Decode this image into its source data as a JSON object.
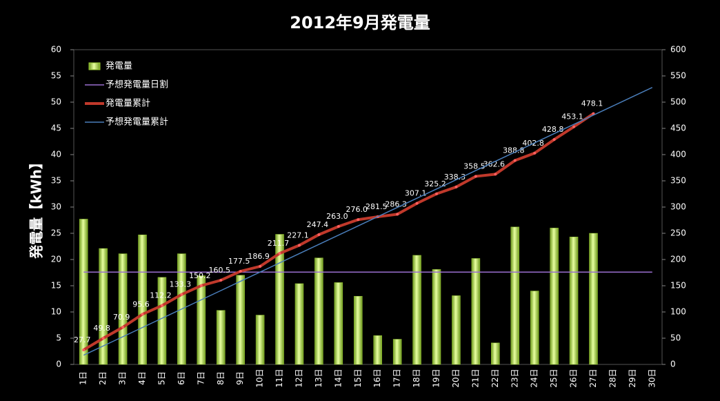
{
  "chart_data": {
    "type": "bar",
    "title": "2012年9月発電量",
    "y_label": "発電量【kWh】",
    "categories": [
      "1日",
      "2日",
      "3日",
      "4日",
      "5日",
      "6日",
      "7日",
      "8日",
      "9日",
      "10日",
      "11日",
      "12日",
      "13日",
      "14日",
      "15日",
      "16日",
      "17日",
      "18日",
      "19日",
      "20日",
      "21日",
      "22日",
      "23日",
      "24日",
      "25日",
      "26日",
      "27日",
      "28日",
      "29日",
      "30日"
    ],
    "series": [
      {
        "name": "発電量",
        "type": "bar",
        "color": "#9acd32",
        "axis": "y",
        "values": [
          27.7,
          22.1,
          21.1,
          24.7,
          16.6,
          21.1,
          16.9,
          10.3,
          17.0,
          9.4,
          24.8,
          15.4,
          20.3,
          15.6,
          13.0,
          5.5,
          4.8,
          20.8,
          18.1,
          13.1,
          20.2,
          4.1,
          26.2,
          14.0,
          26.0,
          24.3,
          25.0,
          null,
          null,
          null
        ]
      },
      {
        "name": "予想発電量日割",
        "type": "line",
        "color": "#9b6fcf",
        "axis": "y",
        "values": [
          17.6,
          17.6,
          17.6,
          17.6,
          17.6,
          17.6,
          17.6,
          17.6,
          17.6,
          17.6,
          17.6,
          17.6,
          17.6,
          17.6,
          17.6,
          17.6,
          17.6,
          17.6,
          17.6,
          17.6,
          17.6,
          17.6,
          17.6,
          17.6,
          17.6,
          17.6,
          17.6,
          17.6,
          17.6,
          17.6
        ]
      },
      {
        "name": "発電量累計",
        "type": "line",
        "color": "#c0392b",
        "axis": "y2",
        "markers": true,
        "values": [
          27.7,
          49.8,
          70.9,
          95.6,
          112.2,
          133.3,
          150.2,
          160.5,
          177.5,
          186.9,
          211.7,
          227.1,
          247.4,
          263.0,
          276.0,
          281.5,
          286.3,
          307.1,
          325.2,
          338.3,
          358.5,
          362.6,
          388.8,
          402.8,
          428.8,
          453.1,
          478.1,
          null,
          null,
          null
        ],
        "value_labels": [
          "27.7",
          "49.8",
          "70.9",
          "95.6",
          "112.2",
          "133.3",
          "150.2",
          "160.5",
          "177.5",
          "186.9",
          "211.7",
          "227.1",
          "247.4",
          "263.0",
          "276.0",
          "281.5",
          "286.3",
          "307.1",
          "325.2",
          "338.3",
          "358.5",
          "362.6",
          "388.8",
          "402.8",
          "428.8",
          "453.1",
          "478.1",
          null,
          null,
          null
        ]
      },
      {
        "name": "予想発電量累計",
        "type": "line",
        "color": "#4a7ebb",
        "axis": "y2",
        "values": [
          17.6,
          35.2,
          52.8,
          70.4,
          88,
          105.6,
          123.2,
          140.8,
          158.4,
          176,
          193.6,
          211.2,
          228.8,
          246.4,
          264,
          281.6,
          299.2,
          316.8,
          334.4,
          352,
          369.6,
          387.2,
          404.8,
          422.4,
          440,
          457.6,
          475.2,
          492.8,
          510.4,
          528
        ]
      }
    ],
    "ylim": [
      0,
      60
    ],
    "yticks": [
      0,
      5,
      10,
      15,
      20,
      25,
      30,
      35,
      40,
      45,
      50,
      55,
      60
    ],
    "y2lim": [
      0,
      600
    ],
    "y2ticks": [
      0,
      50,
      100,
      150,
      200,
      250,
      300,
      350,
      400,
      450,
      500,
      550,
      600
    ],
    "legend": "top-left"
  }
}
